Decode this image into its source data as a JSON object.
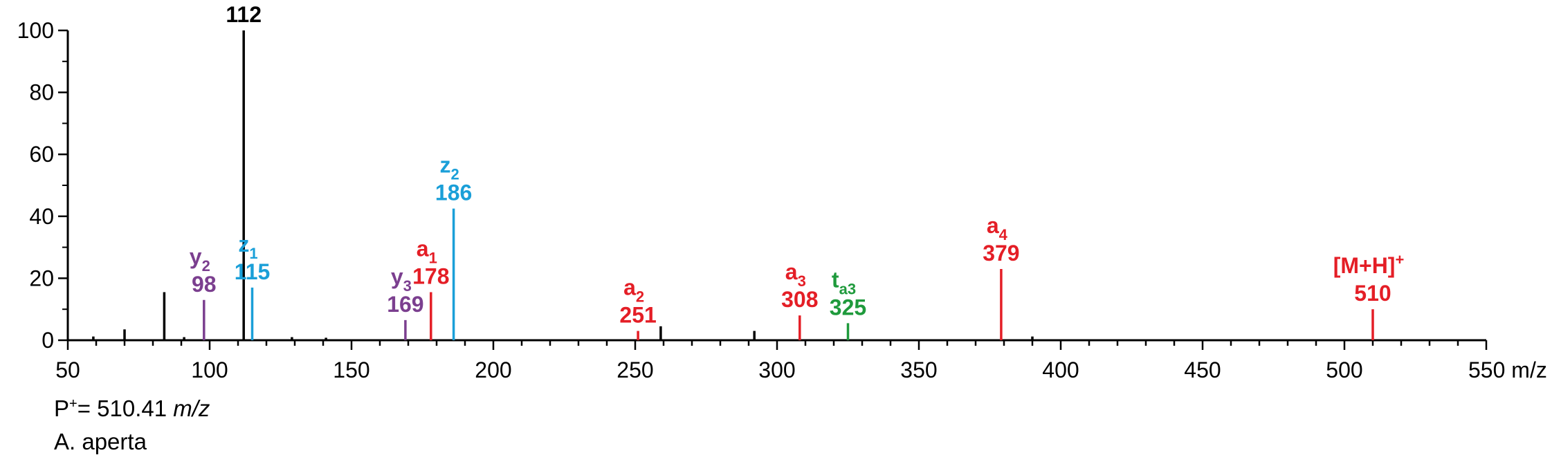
{
  "chart_data": {
    "type": "bar",
    "subtype": "mass-spectrum",
    "xlabel": "m/z",
    "ylabel": "",
    "xlim": [
      50,
      550
    ],
    "ylim": [
      0,
      100
    ],
    "x_ticks": [
      50,
      100,
      150,
      200,
      250,
      300,
      350,
      400,
      450,
      500,
      550
    ],
    "y_ticks": [
      0,
      20,
      40,
      60,
      80,
      100
    ],
    "colors": {
      "black": "#000000",
      "purple": "#7b3f8f",
      "blue": "#1a9fd8",
      "red": "#e41e26",
      "green": "#1f9a3c"
    },
    "peaks": [
      {
        "mz": 59,
        "intensity": 1.2,
        "color": "black"
      },
      {
        "mz": 70,
        "intensity": 3.5,
        "color": "black"
      },
      {
        "mz": 84,
        "intensity": 15.5,
        "color": "black"
      },
      {
        "mz": 91,
        "intensity": 1.0,
        "color": "black"
      },
      {
        "mz": 98,
        "intensity": 13,
        "color": "purple",
        "ion": "y",
        "sub": "2",
        "label": "98"
      },
      {
        "mz": 112,
        "intensity": 100,
        "color": "black",
        "label": "112"
      },
      {
        "mz": 115,
        "intensity": 17,
        "color": "blue",
        "ion": "z",
        "sub": "1",
        "label": "115"
      },
      {
        "mz": 129,
        "intensity": 1.0,
        "color": "black"
      },
      {
        "mz": 141,
        "intensity": 0.8,
        "color": "black"
      },
      {
        "mz": 169,
        "intensity": 6.5,
        "color": "purple",
        "ion": "y",
        "sub": "3",
        "label": "169"
      },
      {
        "mz": 178,
        "intensity": 15.5,
        "color": "red",
        "ion": "a",
        "sub": "1",
        "label": "178"
      },
      {
        "mz": 186,
        "intensity": 42.5,
        "color": "blue",
        "ion": "z",
        "sub": "2",
        "label": "186"
      },
      {
        "mz": 251,
        "intensity": 3,
        "color": "red",
        "ion": "a",
        "sub": "2",
        "label": "251"
      },
      {
        "mz": 259,
        "intensity": 4.5,
        "color": "black"
      },
      {
        "mz": 292,
        "intensity": 3,
        "color": "black"
      },
      {
        "mz": 308,
        "intensity": 8,
        "color": "red",
        "ion": "a",
        "sub": "3",
        "label": "308"
      },
      {
        "mz": 325,
        "intensity": 5.5,
        "color": "green",
        "ion": "t",
        "sub": "a3",
        "label": "325"
      },
      {
        "mz": 379,
        "intensity": 23,
        "color": "red",
        "ion": "a",
        "sub": "4",
        "label": "379"
      },
      {
        "mz": 390,
        "intensity": 1.2,
        "color": "black"
      },
      {
        "mz": 510,
        "intensity": 10,
        "color": "red",
        "ion": "[M+H]",
        "sup": "+",
        "label": "510"
      }
    ]
  },
  "caption": {
    "precursor_prefix": "P",
    "precursor_sup": "+",
    "precursor_value": "= 510.41 ",
    "precursor_unit": "m/z",
    "species": "A. aperta"
  }
}
